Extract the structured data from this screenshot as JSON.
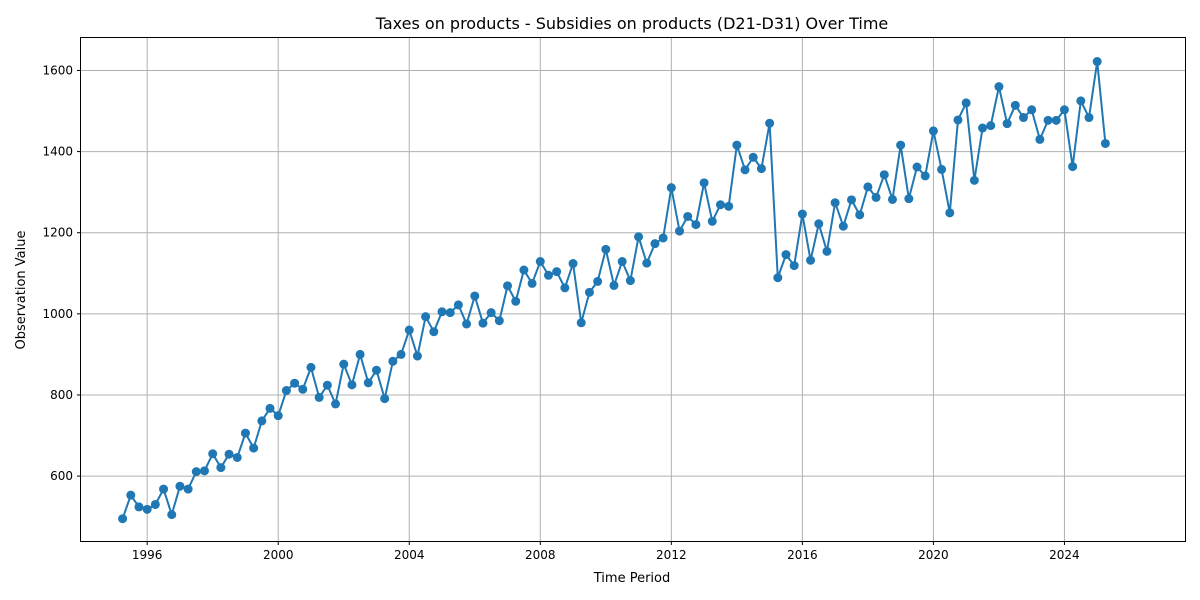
{
  "chart_data": {
    "type": "line",
    "title": "Taxes on products - Subsidies on products (D21-D31) Over Time",
    "xlabel": "Time Period",
    "ylabel": "Observation Value",
    "xlim": [
      1993.98,
      2027.68
    ],
    "ylim": [
      440,
      1680
    ],
    "x_ticks": [
      1996,
      2000,
      2004,
      2008,
      2012,
      2016,
      2020,
      2024
    ],
    "x_tick_labels": [
      "1996",
      "2000",
      "2004",
      "2008",
      "2012",
      "2016",
      "2020",
      "2024"
    ],
    "y_ticks": [
      600,
      800,
      1000,
      1200,
      1400,
      1600
    ],
    "y_tick_labels": [
      "600",
      "800",
      "1000",
      "1200",
      "1400",
      "1600"
    ],
    "grid": true,
    "marker": "circle",
    "color": "#1f77b4",
    "series": [
      {
        "x": [
          1995.25,
          1995.5,
          1995.75,
          1996.0,
          1996.25,
          1996.5,
          1996.75,
          1997.0,
          1997.25,
          1997.5,
          1997.75,
          1998.0,
          1998.25,
          1998.5,
          1998.75,
          1999.0,
          1999.25,
          1999.5,
          1999.75,
          2000.0,
          2000.25,
          2000.5,
          2000.75,
          2001.0,
          2001.25,
          2001.5,
          2001.75,
          2002.0,
          2002.25,
          2002.5,
          2002.75,
          2003.0,
          2003.25,
          2003.5,
          2003.75,
          2004.0,
          2004.25,
          2004.5,
          2004.75,
          2005.0,
          2005.25,
          2005.5,
          2005.75,
          2006.0,
          2006.25,
          2006.5,
          2006.75,
          2007.0,
          2007.25,
          2007.5,
          2007.75,
          2008.0,
          2008.25,
          2008.5,
          2008.75,
          2009.0,
          2009.25,
          2009.5,
          2009.75,
          2010.0,
          2010.25,
          2010.5,
          2010.75,
          2011.0,
          2011.25,
          2011.5,
          2011.75,
          2012.0,
          2012.25,
          2012.5,
          2012.75,
          2013.0,
          2013.25,
          2013.5,
          2013.75,
          2014.0,
          2014.25,
          2014.5,
          2014.75,
          2015.0,
          2015.25,
          2015.5,
          2015.75,
          2016.0,
          2016.25,
          2016.5,
          2016.75,
          2017.0,
          2017.25,
          2017.5,
          2017.75,
          2018.0,
          2018.25,
          2018.5,
          2018.75,
          2019.0,
          2019.25,
          2019.5,
          2019.75,
          2020.0,
          2020.25,
          2020.5,
          2020.75,
          2021.0,
          2021.25,
          2021.5,
          2021.75,
          2022.0,
          2022.25,
          2022.5,
          2022.75,
          2023.0,
          2023.25,
          2023.5,
          2023.75,
          2024.0,
          2024.25,
          2024.5,
          2024.75,
          2025.0,
          2025.25
        ],
        "y": [
          495,
          553,
          524,
          518,
          530,
          568,
          505,
          575,
          568,
          611,
          613,
          655,
          621,
          654,
          646,
          706,
          669,
          736,
          767,
          749,
          811,
          829,
          814,
          868,
          794,
          824,
          778,
          876,
          825,
          900,
          830,
          861,
          791,
          883,
          900,
          960,
          896,
          993,
          956,
          1005,
          1003,
          1022,
          975,
          1044,
          977,
          1003,
          983,
          1069,
          1031,
          1108,
          1075,
          1129,
          1095,
          1104,
          1064,
          1124,
          978,
          1053,
          1080,
          1159,
          1070,
          1129,
          1082,
          1190,
          1125,
          1173,
          1187,
          1311,
          1204,
          1240,
          1220,
          1323,
          1228,
          1269,
          1265,
          1416,
          1355,
          1386,
          1358,
          1470,
          1089,
          1146,
          1119,
          1246,
          1132,
          1222,
          1154,
          1274,
          1216,
          1281,
          1244,
          1313,
          1287,
          1343,
          1282,
          1416,
          1284,
          1362,
          1340,
          1451,
          1356,
          1249,
          1478,
          1520,
          1329,
          1458,
          1464,
          1560,
          1469,
          1514,
          1484,
          1503,
          1430,
          1477,
          1477,
          1503,
          1363,
          1525,
          1484,
          1622,
          1420
        ]
      }
    ]
  }
}
